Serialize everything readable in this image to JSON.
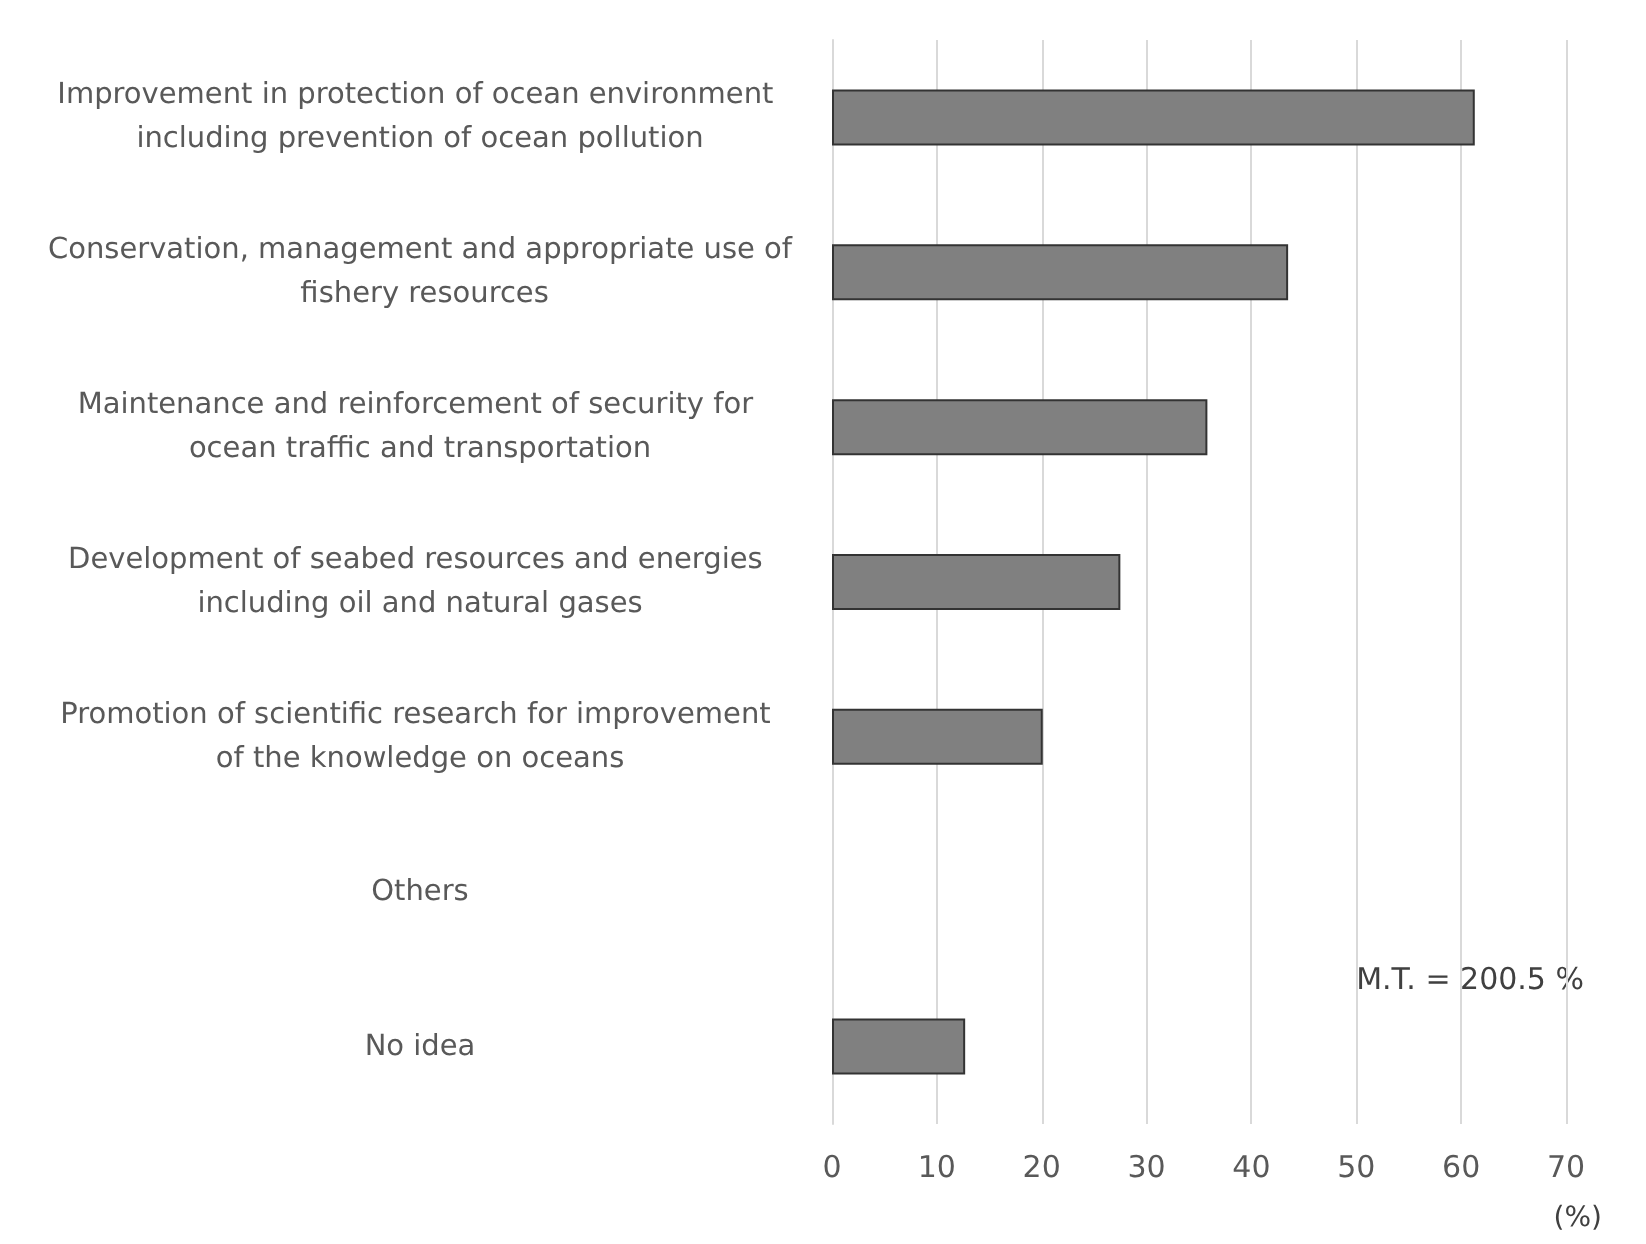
{
  "chart_data": {
    "type": "bar",
    "orientation": "horizontal",
    "categories": [
      "Improvement in protection of ocean environment including prevention of ocean pollution",
      "Conservation, management and appropriate use of fishery resources",
      "Maintenance and reinforcement of security for ocean traffic and transportation",
      "Development of seabed resources and energies including oil and natural gases",
      "Promotion of scientific research for improvement of the knowledge on oceans",
      "Others",
      "No idea"
    ],
    "values": [
      61.3,
      43.5,
      35.8,
      27.5,
      20.1,
      0,
      12.7
    ],
    "color": "#808080",
    "xlim": [
      0,
      70
    ],
    "xticks": [
      0,
      10,
      20,
      30,
      40,
      50,
      60,
      70
    ],
    "xlabel": "(%)",
    "annotations": [
      "M.T. = 200.5 %"
    ],
    "grid": "x"
  }
}
